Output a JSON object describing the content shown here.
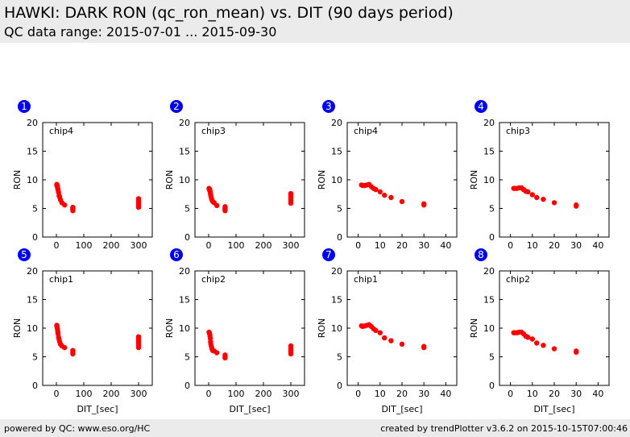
{
  "header": {
    "title": "HAWKI: DARK RON (qc_ron_mean) vs. DIT (90 days period)",
    "subtitle": "QC data range: 2015-07-01 ... 2015-09-30"
  },
  "footer": {
    "left": "powered by QC: www.eso.org/HC",
    "right": "created by trendPlotter v3.6.2 on 2015-10-15T07:00:46"
  },
  "colors": {
    "marker": "#ff0000",
    "badge": "#0000ee",
    "banner": "#ebebeb"
  },
  "chart_data": [
    {
      "type": "scatter",
      "panel": "1",
      "label": "chip4",
      "xlabel": "",
      "ylabel": "RON",
      "xlim": [
        -50,
        350
      ],
      "ylim": [
        0,
        20
      ],
      "xticks": [
        "0",
        "100",
        "200",
        "300"
      ],
      "yticks": [
        "0",
        "5",
        "10",
        "15",
        "20"
      ],
      "points": [
        [
          1.5,
          9.2
        ],
        [
          2,
          9.0
        ],
        [
          3,
          8.8
        ],
        [
          4,
          8.9
        ],
        [
          5,
          8.5
        ],
        [
          6,
          8.2
        ],
        [
          8,
          7.8
        ],
        [
          10,
          7.2
        ],
        [
          12,
          7.0
        ],
        [
          15,
          6.5
        ],
        [
          20,
          6.0
        ],
        [
          30,
          5.6
        ],
        [
          60,
          4.6
        ],
        [
          60,
          4.8
        ],
        [
          60,
          5.0
        ],
        [
          60,
          5.2
        ],
        [
          300,
          5.2
        ],
        [
          300,
          5.5
        ],
        [
          300,
          5.8
        ],
        [
          300,
          6.1
        ],
        [
          300,
          6.4
        ],
        [
          300,
          6.7
        ]
      ]
    },
    {
      "type": "scatter",
      "panel": "2",
      "label": "chip3",
      "xlabel": "",
      "ylabel": "RON",
      "xlim": [
        -50,
        350
      ],
      "ylim": [
        0,
        20
      ],
      "xticks": [
        "0",
        "100",
        "200",
        "300"
      ],
      "yticks": [
        "0",
        "5",
        "10",
        "15",
        "20"
      ],
      "points": [
        [
          1.5,
          8.5
        ],
        [
          2,
          8.4
        ],
        [
          3,
          8.3
        ],
        [
          4,
          8.3
        ],
        [
          5,
          8.0
        ],
        [
          6,
          7.8
        ],
        [
          7,
          7.5
        ],
        [
          8,
          7.2
        ],
        [
          10,
          6.8
        ],
        [
          12,
          6.5
        ],
        [
          15,
          6.2
        ],
        [
          20,
          6.0
        ],
        [
          30,
          5.5
        ],
        [
          60,
          4.6
        ],
        [
          60,
          4.8
        ],
        [
          60,
          5.0
        ],
        [
          60,
          5.3
        ],
        [
          300,
          5.9
        ],
        [
          300,
          6.2
        ],
        [
          300,
          6.5
        ],
        [
          300,
          6.8
        ],
        [
          300,
          7.1
        ],
        [
          300,
          7.4
        ],
        [
          300,
          7.6
        ]
      ]
    },
    {
      "type": "scatter",
      "panel": "3",
      "label": "chip4",
      "xlabel": "",
      "ylabel": "RON",
      "xlim": [
        -5,
        45
      ],
      "ylim": [
        0,
        20
      ],
      "xticks": [
        "0",
        "10",
        "20",
        "30",
        "40"
      ],
      "yticks": [
        "0",
        "5",
        "10",
        "15",
        "20"
      ],
      "points": [
        [
          1.5,
          9.1
        ],
        [
          2,
          9.0
        ],
        [
          3,
          9.0
        ],
        [
          4,
          9.1
        ],
        [
          5,
          9.2
        ],
        [
          6,
          8.8
        ],
        [
          7,
          8.5
        ],
        [
          8,
          8.3
        ],
        [
          10,
          7.9
        ],
        [
          12,
          7.3
        ],
        [
          15,
          6.9
        ],
        [
          20,
          6.2
        ],
        [
          30,
          5.6
        ],
        [
          30,
          5.8
        ]
      ]
    },
    {
      "type": "scatter",
      "panel": "4",
      "label": "chip3",
      "xlabel": "",
      "ylabel": "RON",
      "xlim": [
        -5,
        45
      ],
      "ylim": [
        0,
        20
      ],
      "xticks": [
        "0",
        "10",
        "20",
        "30",
        "40"
      ],
      "yticks": [
        "0",
        "5",
        "10",
        "15",
        "20"
      ],
      "points": [
        [
          1.5,
          8.5
        ],
        [
          2,
          8.5
        ],
        [
          3,
          8.5
        ],
        [
          4,
          8.6
        ],
        [
          5,
          8.6
        ],
        [
          6,
          8.3
        ],
        [
          7,
          8.0
        ],
        [
          8,
          7.9
        ],
        [
          10,
          7.4
        ],
        [
          12,
          6.9
        ],
        [
          15,
          6.6
        ],
        [
          20,
          6.0
        ],
        [
          30,
          5.4
        ],
        [
          30,
          5.6
        ]
      ]
    },
    {
      "type": "scatter",
      "panel": "5",
      "label": "chip1",
      "xlabel": "DIT_[sec]",
      "ylabel": "RON",
      "xlim": [
        -50,
        350
      ],
      "ylim": [
        0,
        20
      ],
      "xticks": [
        "0",
        "100",
        "200",
        "300"
      ],
      "yticks": [
        "0",
        "5",
        "10",
        "15",
        "20"
      ],
      "points": [
        [
          1.5,
          10.5
        ],
        [
          2,
          10.3
        ],
        [
          3,
          10.1
        ],
        [
          4,
          9.8
        ],
        [
          5,
          9.4
        ],
        [
          6,
          9.0
        ],
        [
          8,
          8.4
        ],
        [
          10,
          8.0
        ],
        [
          12,
          7.6
        ],
        [
          15,
          7.2
        ],
        [
          20,
          6.9
        ],
        [
          30,
          6.6
        ],
        [
          60,
          5.5
        ],
        [
          60,
          5.8
        ],
        [
          60,
          6.1
        ],
        [
          300,
          6.6
        ],
        [
          300,
          7.0
        ],
        [
          300,
          7.3
        ],
        [
          300,
          7.6
        ],
        [
          300,
          7.9
        ],
        [
          300,
          8.2
        ],
        [
          300,
          8.5
        ]
      ]
    },
    {
      "type": "scatter",
      "panel": "6",
      "label": "chip2",
      "xlabel": "DIT_[sec]",
      "ylabel": "RON",
      "xlim": [
        -50,
        350
      ],
      "ylim": [
        0,
        20
      ],
      "xticks": [
        "0",
        "100",
        "200",
        "300"
      ],
      "yticks": [
        "0",
        "5",
        "10",
        "15",
        "20"
      ],
      "points": [
        [
          1.5,
          9.3
        ],
        [
          2,
          9.2
        ],
        [
          3,
          9.1
        ],
        [
          4,
          8.9
        ],
        [
          5,
          8.6
        ],
        [
          6,
          8.2
        ],
        [
          7,
          7.6
        ],
        [
          8,
          7.2
        ],
        [
          10,
          6.8
        ],
        [
          12,
          6.4
        ],
        [
          15,
          6.1
        ],
        [
          20,
          6.0
        ],
        [
          30,
          5.7
        ],
        [
          60,
          4.8
        ],
        [
          60,
          5.0
        ],
        [
          60,
          5.3
        ],
        [
          300,
          5.5
        ],
        [
          300,
          5.8
        ],
        [
          300,
          6.1
        ],
        [
          300,
          6.4
        ],
        [
          300,
          6.7
        ],
        [
          300,
          6.9
        ]
      ]
    },
    {
      "type": "scatter",
      "panel": "7",
      "label": "chip1",
      "xlabel": "DIT_[sec]",
      "ylabel": "RON",
      "xlim": [
        -5,
        45
      ],
      "ylim": [
        0,
        20
      ],
      "xticks": [
        "0",
        "10",
        "20",
        "30",
        "40"
      ],
      "yticks": [
        "0",
        "5",
        "10",
        "15",
        "20"
      ],
      "points": [
        [
          1.5,
          10.4
        ],
        [
          2,
          10.3
        ],
        [
          3,
          10.4
        ],
        [
          4,
          10.5
        ],
        [
          5,
          10.6
        ],
        [
          6,
          10.3
        ],
        [
          7,
          9.9
        ],
        [
          8,
          9.6
        ],
        [
          10,
          9.2
        ],
        [
          12,
          8.3
        ],
        [
          15,
          7.8
        ],
        [
          20,
          7.2
        ],
        [
          30,
          6.6
        ],
        [
          30,
          6.8
        ]
      ]
    },
    {
      "type": "scatter",
      "panel": "8",
      "label": "chip2",
      "xlabel": "DIT_[sec]",
      "ylabel": "RON",
      "xlim": [
        -5,
        45
      ],
      "ylim": [
        0,
        20
      ],
      "xticks": [
        "0",
        "10",
        "20",
        "30",
        "40"
      ],
      "yticks": [
        "0",
        "5",
        "10",
        "15",
        "20"
      ],
      "points": [
        [
          1.5,
          9.2
        ],
        [
          2,
          9.2
        ],
        [
          3,
          9.2
        ],
        [
          4,
          9.3
        ],
        [
          5,
          9.3
        ],
        [
          6,
          9.0
        ],
        [
          7,
          8.6
        ],
        [
          8,
          8.4
        ],
        [
          10,
          8.1
        ],
        [
          12,
          7.4
        ],
        [
          15,
          7.0
        ],
        [
          20,
          6.4
        ],
        [
          30,
          5.8
        ],
        [
          30,
          6.0
        ]
      ]
    }
  ]
}
